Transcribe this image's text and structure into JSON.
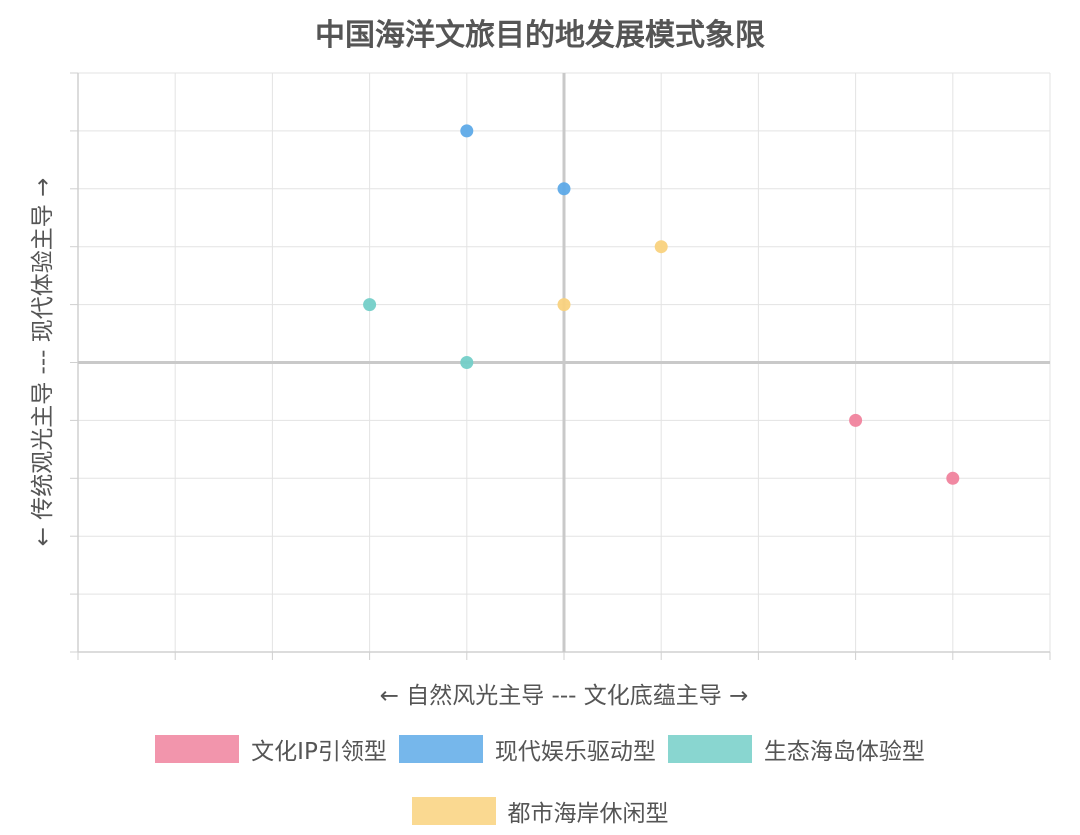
{
  "chart_data": {
    "type": "scatter",
    "title": "中国海洋文旅目的地发展模式象限",
    "xlabel": "← 自然风光主导 --- 文化底蕴主导 →",
    "ylabel": "← 传统观光主导 --- 现代体验主导 →",
    "xlim": [
      -5,
      5
    ],
    "ylim": [
      -5,
      5
    ],
    "grid": true,
    "legend_position": "bottom",
    "series": [
      {
        "name": "文化IP引领型",
        "color": "#f0839d",
        "points": [
          {
            "x": 3,
            "y": -1
          },
          {
            "x": 4,
            "y": -2
          }
        ]
      },
      {
        "name": "现代娱乐驱动型",
        "color": "#5eaae8",
        "points": [
          {
            "x": -1,
            "y": 4
          },
          {
            "x": 0,
            "y": 3
          }
        ]
      },
      {
        "name": "生态海岛体验型",
        "color": "#74cfc8",
        "points": [
          {
            "x": -2,
            "y": 1
          },
          {
            "x": -1,
            "y": 0
          }
        ]
      },
      {
        "name": "都市海岸休闲型",
        "color": "#f9d27e",
        "points": [
          {
            "x": 1,
            "y": 2
          },
          {
            "x": 0,
            "y": 1
          }
        ]
      }
    ]
  }
}
